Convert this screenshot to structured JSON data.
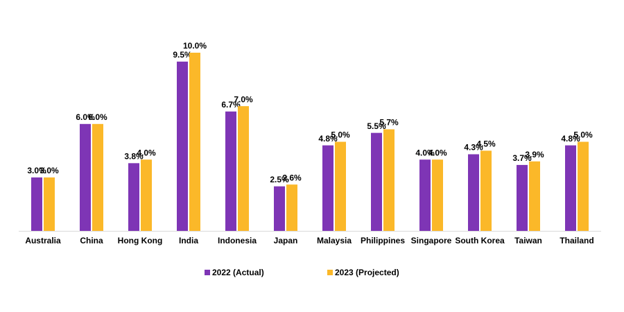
{
  "chart_data": {
    "type": "bar",
    "categories": [
      "Australia",
      "China",
      "Hong Kong",
      "India",
      "Indonesia",
      "Japan",
      "Malaysia",
      "Philippines",
      "Singapore",
      "South Korea",
      "Taiwan",
      "Thailand"
    ],
    "series": [
      {
        "name": "2022 (Actual)",
        "color": "#7e35b5",
        "values": [
          3.0,
          6.0,
          3.8,
          9.5,
          6.7,
          2.5,
          4.8,
          5.5,
          4.0,
          4.3,
          3.7,
          4.8
        ],
        "value_labels": [
          "3.0%",
          "6.0%",
          "3.8%",
          "9.5%",
          "6.7%",
          "2.5%",
          "4.8%",
          "5.5%",
          "4.0%",
          "4.3%",
          "3.7%",
          "4.8%"
        ]
      },
      {
        "name": "2023 (Projected)",
        "color": "#fbb829",
        "values": [
          3.0,
          6.0,
          4.0,
          10.0,
          7.0,
          2.6,
          5.0,
          5.7,
          4.0,
          4.5,
          3.9,
          5.0
        ],
        "value_labels": [
          "3.0%",
          "6.0%",
          "4.0%",
          "10.0%",
          "7.0%",
          "2.6%",
          "5.0%",
          "5.7%",
          "4.0%",
          "4.5%",
          "3.9%",
          "5.0%"
        ]
      }
    ],
    "ylim": [
      0,
      10
    ]
  }
}
